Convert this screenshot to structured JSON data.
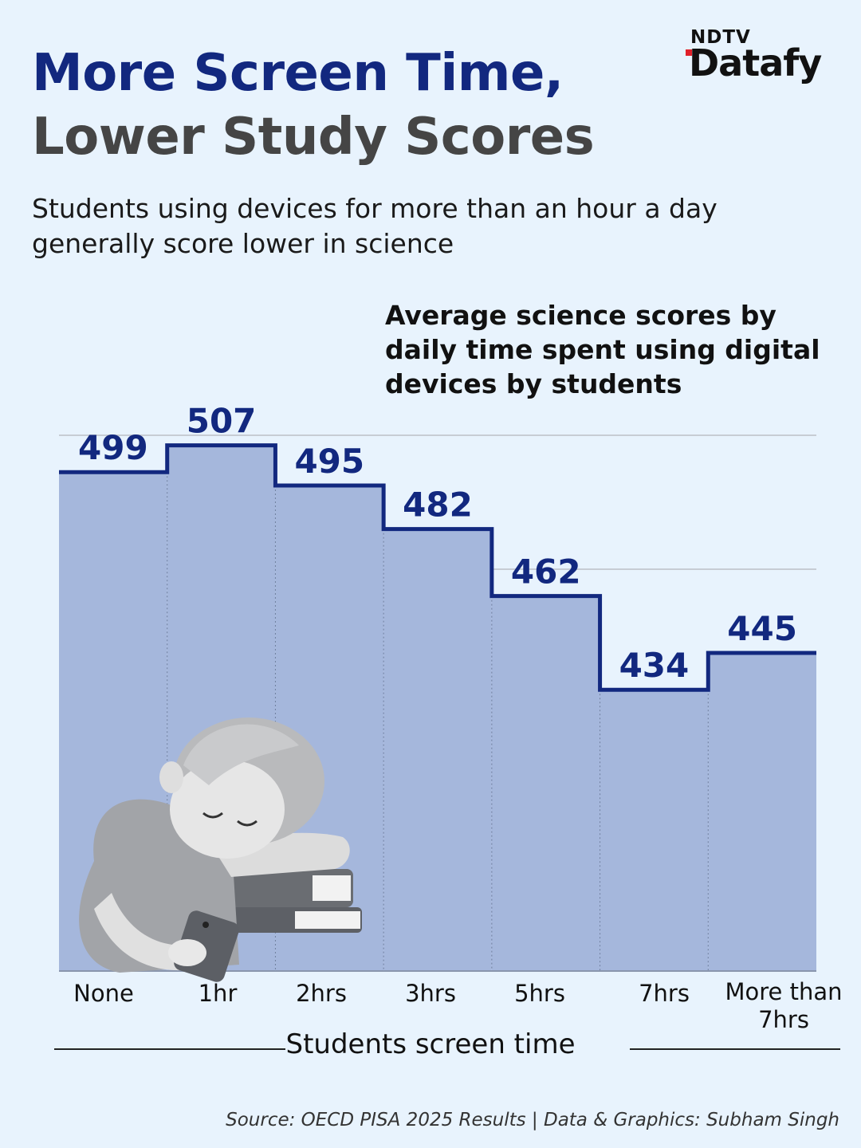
{
  "header": {
    "title_line1": "More Screen Time,",
    "title_line2": "Lower Study Scores",
    "subtitle": "Students using devices for more than an hour a day generally score lower in science",
    "chart_description": "Average science scores by daily time spent using digital devices by students"
  },
  "logo": {
    "ndtv": "NDTV",
    "datafy": "Datafy"
  },
  "footer": {
    "source": "Source: OECD PISA 2025 Results | Data & Graphics: Subham Singh"
  },
  "colors": {
    "title_primary": "#12287f",
    "title_secondary": "#454545",
    "area_fill": "#a5b7dc",
    "step_line": "#12287f",
    "value_label": "#12287f",
    "background": "#e8f3fd",
    "logo_accent": "#e0202a"
  },
  "illustration": {
    "icon": "sleeping-student-on-books-with-phone-illustration"
  },
  "chart_data": {
    "type": "area",
    "style": "step",
    "categories": [
      "None",
      "1hr",
      "2hrs",
      "3hrs",
      "5hrs",
      "7hrs",
      "More than 7hrs"
    ],
    "values": [
      499,
      507,
      495,
      482,
      462,
      434,
      445
    ],
    "xlabel": "Students screen time",
    "ylabel": "",
    "ylim": [
      350,
      520
    ],
    "grid": true,
    "legend": "none",
    "data_labels": true
  }
}
